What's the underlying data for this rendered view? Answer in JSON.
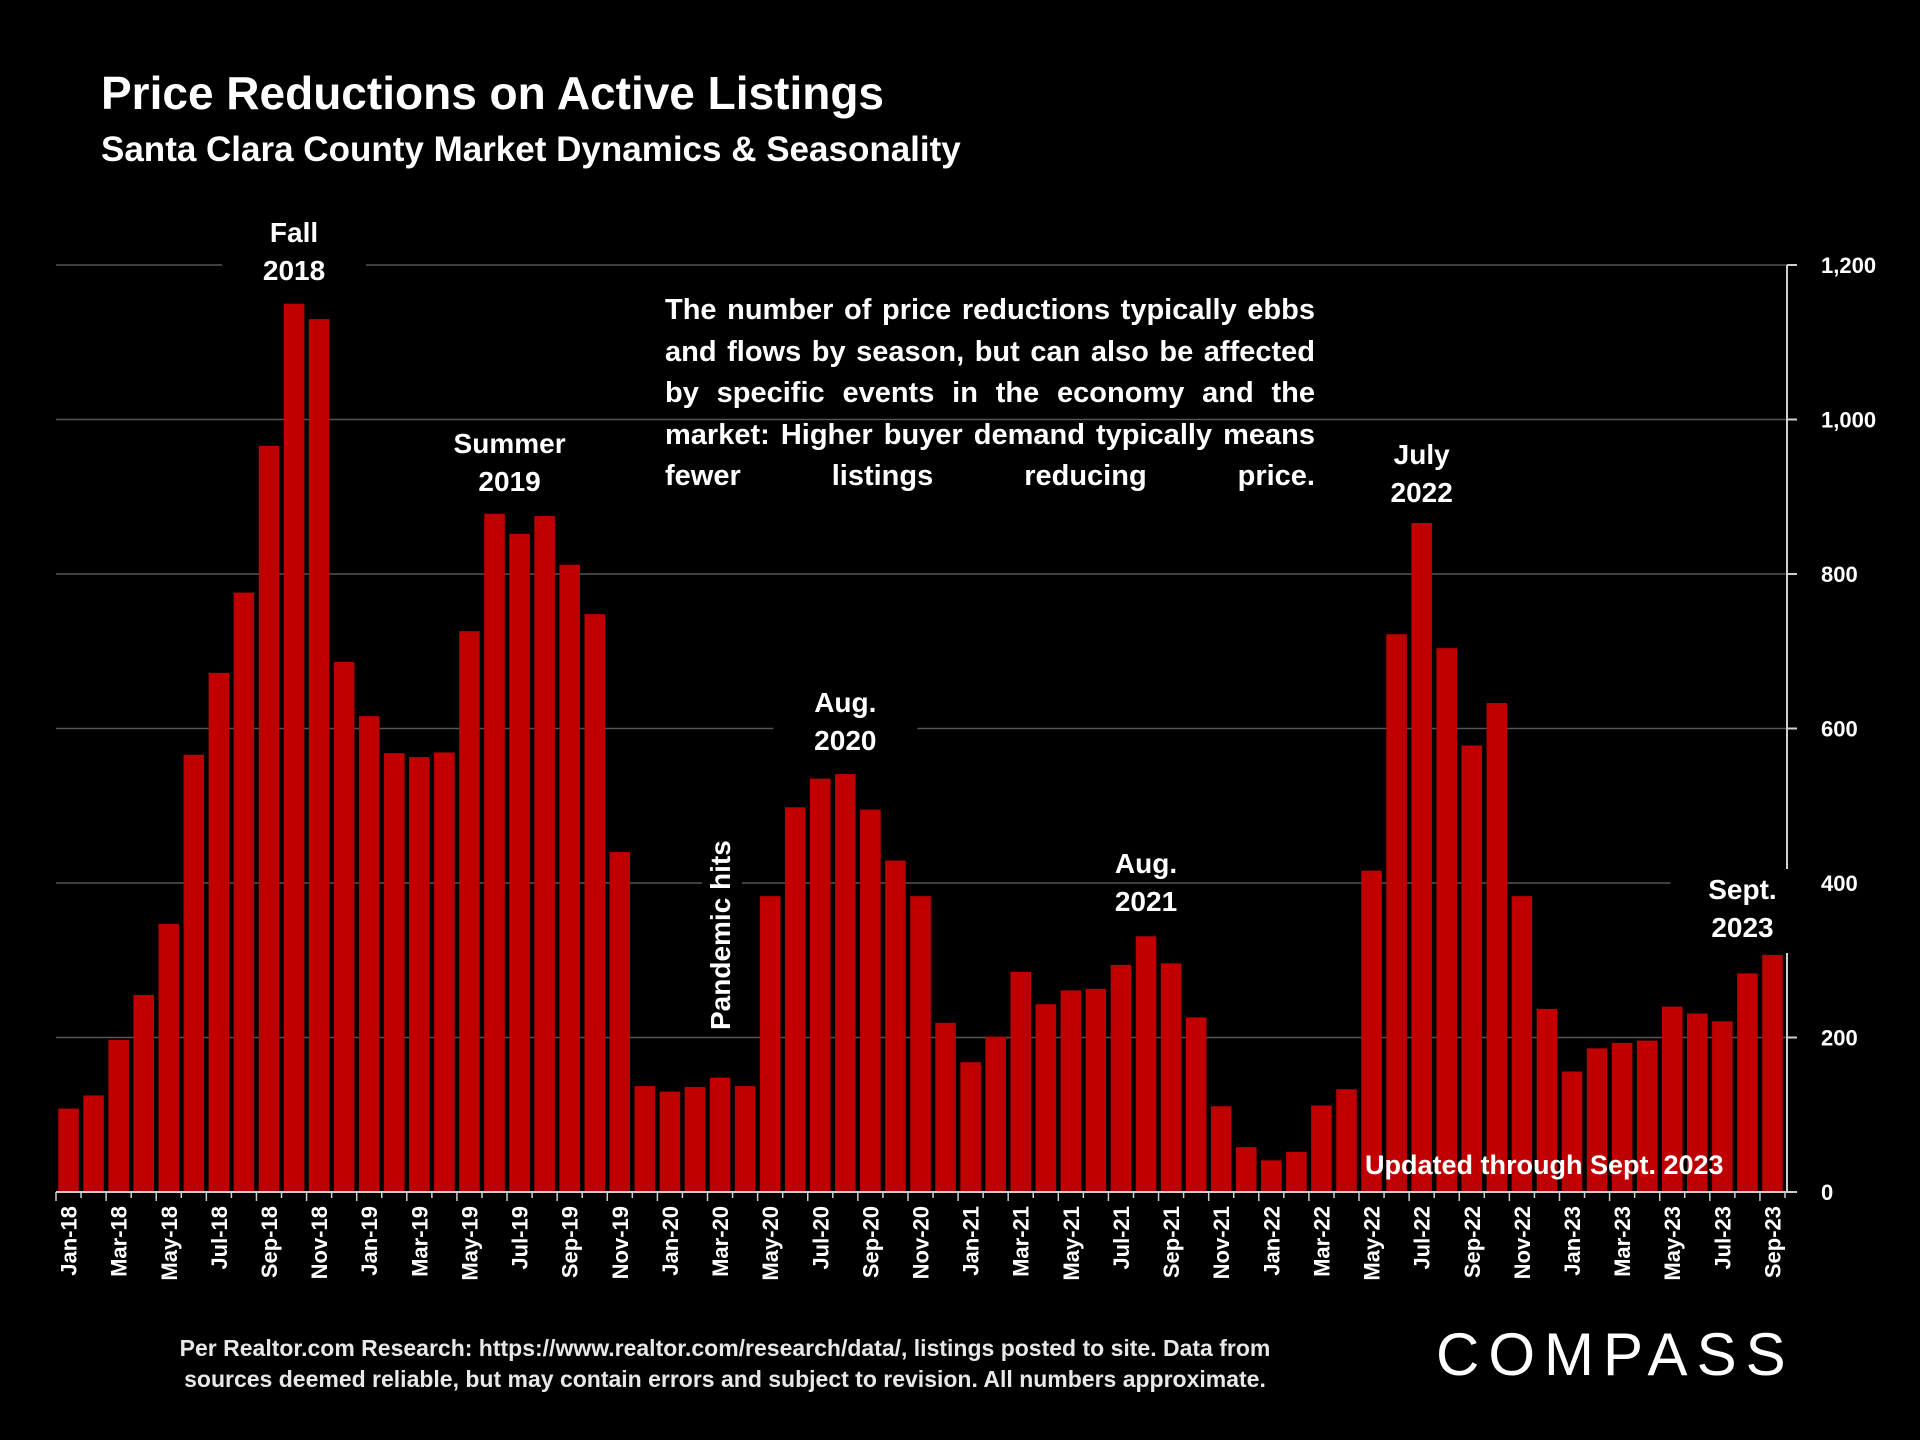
{
  "header": {
    "title": "Price Reductions on Active Listings",
    "subtitle": "Santa Clara County Market Dynamics & Seasonality"
  },
  "note": "The number of price reductions typically ebbs and flows by season, but can also be affected by specific events in the economy and the market:  Higher buyer demand typically means fewer listings reducing price.",
  "updated": "Updated through Sept. 2023",
  "footer": {
    "line1": "Per Realtor.com Research:  https://www.realtor.com/research/data/, listings posted to site. Data from",
    "line2": "sources deemed reliable, but may contain errors and subject to revision. All numbers approximate."
  },
  "logo": "COMPASS",
  "colors": {
    "bar": "#c00000",
    "background": "#000000",
    "grid": "#555555",
    "text": "#ffffff"
  },
  "chart_data": {
    "type": "bar",
    "title": "Price Reductions on Active Listings",
    "xlabel": "",
    "ylabel": "",
    "ylim": [
      0,
      1200
    ],
    "yticks": [
      0,
      200,
      400,
      600,
      800,
      1000,
      1200
    ],
    "ytick_labels": [
      "0",
      "200",
      "400",
      "600",
      "800",
      "1,000",
      "1,200"
    ],
    "grid": true,
    "axis_position": "right",
    "categories": [
      "Jan-18",
      "Feb-18",
      "Mar-18",
      "Apr-18",
      "May-18",
      "Jun-18",
      "Jul-18",
      "Aug-18",
      "Sep-18",
      "Oct-18",
      "Nov-18",
      "Dec-18",
      "Jan-19",
      "Feb-19",
      "Mar-19",
      "Apr-19",
      "May-19",
      "Jun-19",
      "Jul-19",
      "Aug-19",
      "Sep-19",
      "Oct-19",
      "Nov-19",
      "Dec-19",
      "Jan-20",
      "Feb-20",
      "Mar-20",
      "Apr-20",
      "May-20",
      "Jun-20",
      "Jul-20",
      "Aug-20",
      "Sep-20",
      "Oct-20",
      "Nov-20",
      "Dec-20",
      "Jan-21",
      "Feb-21",
      "Mar-21",
      "Apr-21",
      "May-21",
      "Jun-21",
      "Jul-21",
      "Aug-21",
      "Sep-21",
      "Oct-21",
      "Nov-21",
      "Dec-21",
      "Jan-22",
      "Feb-22",
      "Mar-22",
      "Apr-22",
      "May-22",
      "Jun-22",
      "Jul-22",
      "Aug-22",
      "Sep-22",
      "Oct-22",
      "Nov-22",
      "Dec-22",
      "Jan-23",
      "Feb-23",
      "Mar-23",
      "Apr-23",
      "May-23",
      "Jun-23",
      "Jul-23",
      "Aug-23",
      "Sep-23"
    ],
    "tick_labels": [
      "Jan-18",
      "Mar-18",
      "May-18",
      "Jul-18",
      "Sep-18",
      "Nov-18",
      "Jan-19",
      "Mar-19",
      "May-19",
      "Jul-19",
      "Sep-19",
      "Nov-19",
      "Jan-20",
      "Mar-20",
      "May-20",
      "Jul-20",
      "Sep-20",
      "Nov-20",
      "Jan-21",
      "Mar-21",
      "May-21",
      "Jul-21",
      "Sep-21",
      "Nov-21",
      "Jan-22",
      "Mar-22",
      "May-22",
      "Jul-22",
      "Sep-22",
      "Nov-22",
      "Jan-23",
      "Mar-23",
      "May-23",
      "Jul-23",
      "Sep-23"
    ],
    "values": [
      108,
      125,
      197,
      255,
      347,
      566,
      672,
      776,
      966,
      1150,
      1130,
      686,
      616,
      568,
      563,
      569,
      726,
      878,
      852,
      875,
      812,
      748,
      440,
      137,
      130,
      136,
      148,
      137,
      383,
      498,
      535,
      541,
      495,
      429,
      383,
      219,
      168,
      201,
      285,
      243,
      261,
      263,
      294,
      331,
      296,
      226,
      111,
      58,
      41,
      52,
      112,
      133,
      416,
      722,
      866,
      704,
      578,
      633,
      383,
      237,
      156,
      186,
      193,
      196,
      240,
      231,
      221,
      283,
      307
    ],
    "annotations": [
      {
        "label_line1": "Fall",
        "label_line2": "2018",
        "category": "Oct-18"
      },
      {
        "label_line1": "Summer",
        "label_line2": "2019",
        "category": "Jul-19"
      },
      {
        "label_line1": "Pandemic hits",
        "category": "Mar-20",
        "orientation": "vertical"
      },
      {
        "label_line1": "Aug.",
        "label_line2": "2020",
        "category": "Aug-20"
      },
      {
        "label_line1": "Aug.",
        "label_line2": "2021",
        "category": "Aug-21"
      },
      {
        "label_line1": "July",
        "label_line2": "2022",
        "category": "Jul-22"
      },
      {
        "label_line1": "Sept.",
        "label_line2": "2023",
        "category": "Sep-23"
      }
    ]
  }
}
